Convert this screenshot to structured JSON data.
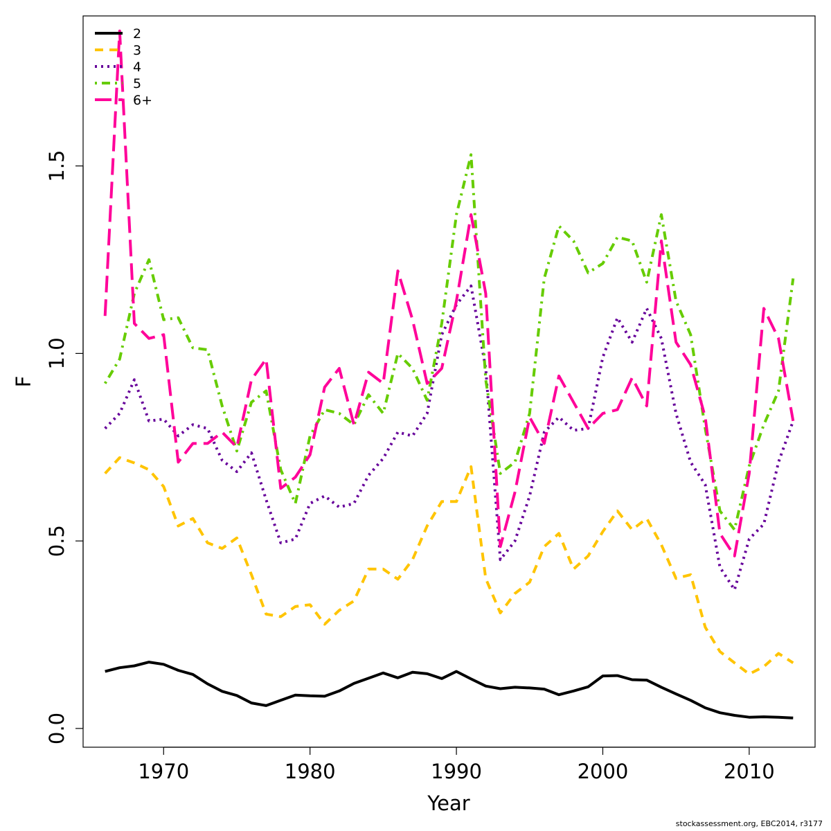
{
  "footer": {
    "credit": "stockassessment.org, EBC2014, r3177"
  },
  "chart_data": {
    "type": "line",
    "xlabel": "Year",
    "ylabel": "F",
    "xlim": [
      1964.5,
      2014.5
    ],
    "ylim": [
      -0.05,
      1.9
    ],
    "xticks": [
      1970,
      1980,
      1990,
      2000,
      2010
    ],
    "yticks": [
      0.0,
      0.5,
      1.0,
      1.5
    ],
    "ytick_labels": [
      "0.0",
      "0.5",
      "1.0",
      "1.5"
    ],
    "legend_position": "top-left",
    "grid": false,
    "x": [
      1966,
      1967,
      1968,
      1969,
      1970,
      1971,
      1972,
      1973,
      1974,
      1975,
      1976,
      1977,
      1978,
      1979,
      1980,
      1981,
      1982,
      1983,
      1984,
      1985,
      1986,
      1987,
      1988,
      1989,
      1990,
      1991,
      1992,
      1993,
      1994,
      1995,
      1996,
      1997,
      1998,
      1999,
      2000,
      2001,
      2002,
      2003,
      2004,
      2005,
      2006,
      2007,
      2008,
      2009,
      2010,
      2011,
      2012,
      2013
    ],
    "series": [
      {
        "name": "2",
        "color": "#000000",
        "dash": "solid",
        "values": [
          0.152,
          0.162,
          0.167,
          0.177,
          0.171,
          0.155,
          0.144,
          0.119,
          0.099,
          0.088,
          0.068,
          0.061,
          0.075,
          0.089,
          0.087,
          0.086,
          0.1,
          0.12,
          0.134,
          0.148,
          0.135,
          0.15,
          0.146,
          0.133,
          0.152,
          0.132,
          0.113,
          0.106,
          0.11,
          0.108,
          0.105,
          0.09,
          0.1,
          0.111,
          0.14,
          0.141,
          0.13,
          0.129,
          0.11,
          0.092,
          0.075,
          0.055,
          0.042,
          0.035,
          0.03,
          0.031,
          0.03,
          0.028
        ]
      },
      {
        "name": "3",
        "color": "#ffc400",
        "dash": "dash",
        "values": [
          0.68,
          0.722,
          0.708,
          0.69,
          0.645,
          0.54,
          0.56,
          0.495,
          0.48,
          0.508,
          0.41,
          0.305,
          0.298,
          0.325,
          0.33,
          0.278,
          0.315,
          0.34,
          0.425,
          0.425,
          0.398,
          0.45,
          0.54,
          0.605,
          0.605,
          0.698,
          0.4,
          0.308,
          0.36,
          0.39,
          0.485,
          0.52,
          0.425,
          0.46,
          0.525,
          0.58,
          0.53,
          0.56,
          0.49,
          0.4,
          0.41,
          0.27,
          0.205,
          0.175,
          0.145,
          0.165,
          0.2,
          0.175
        ]
      },
      {
        "name": "4",
        "color": "#66009a",
        "dash": "dot",
        "values": [
          0.8,
          0.84,
          0.93,
          0.82,
          0.825,
          0.78,
          0.81,
          0.8,
          0.715,
          0.685,
          0.735,
          0.61,
          0.495,
          0.505,
          0.6,
          0.62,
          0.59,
          0.6,
          0.675,
          0.72,
          0.79,
          0.78,
          0.84,
          1.05,
          1.13,
          1.18,
          0.96,
          0.45,
          0.5,
          0.62,
          0.79,
          0.83,
          0.795,
          0.8,
          0.99,
          1.095,
          1.03,
          1.12,
          1.04,
          0.84,
          0.71,
          0.65,
          0.43,
          0.37,
          0.505,
          0.545,
          0.71,
          0.82
        ]
      },
      {
        "name": "5",
        "color": "#66cc00",
        "dash": "dashdot",
        "values": [
          0.92,
          0.985,
          1.16,
          1.25,
          1.09,
          1.095,
          1.015,
          1.01,
          0.86,
          0.74,
          0.87,
          0.9,
          0.69,
          0.6,
          0.78,
          0.85,
          0.84,
          0.81,
          0.89,
          0.84,
          1.0,
          0.96,
          0.875,
          1.08,
          1.37,
          1.53,
          0.93,
          0.68,
          0.71,
          0.84,
          1.2,
          1.34,
          1.3,
          1.215,
          1.24,
          1.31,
          1.3,
          1.19,
          1.37,
          1.14,
          1.05,
          0.8,
          0.58,
          0.53,
          0.7,
          0.81,
          0.9,
          1.2
        ]
      },
      {
        "name": "6+",
        "color": "#ff0099",
        "dash": "longdash",
        "values": [
          1.1,
          1.86,
          1.08,
          1.04,
          1.05,
          0.71,
          0.76,
          0.76,
          0.79,
          0.75,
          0.93,
          0.985,
          0.64,
          0.67,
          0.73,
          0.91,
          0.96,
          0.81,
          0.95,
          0.92,
          1.22,
          1.09,
          0.92,
          0.96,
          1.14,
          1.37,
          1.16,
          0.485,
          0.63,
          0.83,
          0.76,
          0.94,
          0.87,
          0.8,
          0.84,
          0.85,
          0.935,
          0.86,
          1.3,
          1.03,
          0.97,
          0.83,
          0.52,
          0.46,
          0.68,
          1.12,
          1.04,
          0.82
        ]
      }
    ]
  }
}
